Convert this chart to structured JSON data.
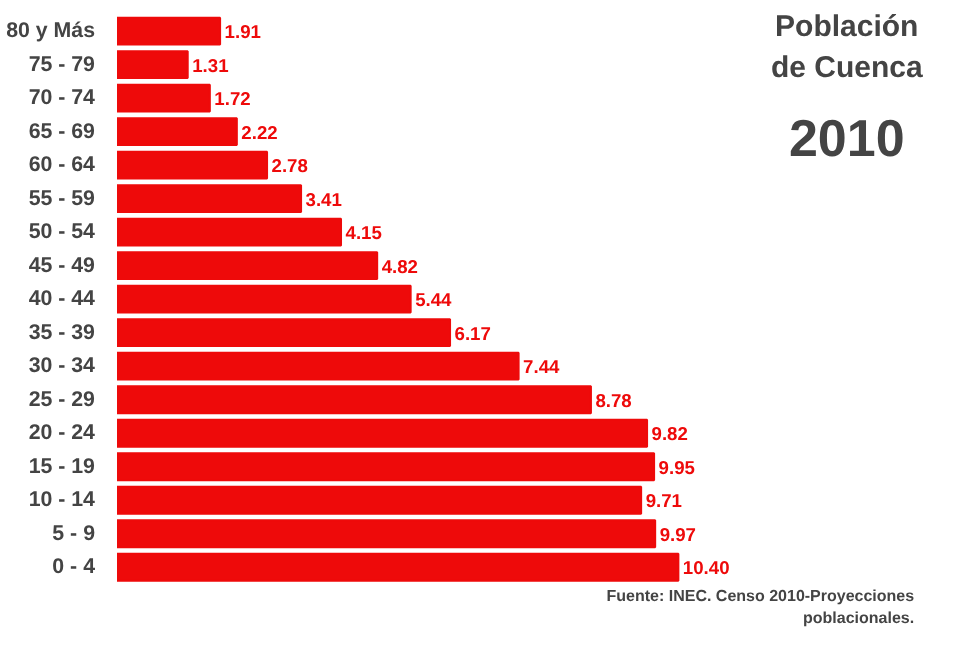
{
  "chart_data": {
    "type": "bar",
    "orientation": "horizontal",
    "title": "Población\nde Cuenca",
    "subtitle": "2010",
    "categories": [
      "80 y Más",
      "75 - 79",
      "70 - 74",
      "65 - 69",
      "60 - 64",
      "55 - 59",
      "50 - 54",
      "45 - 49",
      "40 - 44",
      "35 - 39",
      "30 - 34",
      "25 - 29",
      "20 - 24",
      "15 - 19",
      "10 - 14",
      "5 - 9",
      "0 - 4"
    ],
    "values": [
      1.91,
      1.31,
      1.72,
      2.22,
      2.78,
      3.41,
      4.15,
      4.82,
      5.44,
      6.17,
      7.44,
      8.78,
      9.82,
      9.95,
      9.71,
      9.97,
      10.4
    ],
    "value_labels": [
      "1.91",
      "1.31",
      "1.72",
      "2.22",
      "2.78",
      "3.41",
      "4.15",
      "4.82",
      "5.44",
      "6.17",
      "7.44",
      "8.78",
      "9.82",
      "9.95",
      "9.71",
      "9.97",
      "10.40"
    ],
    "color": "#ee0a0a",
    "annotations": [
      "Fuente: INEC. Censo 2010-Proyecciones\npoblacionales."
    ]
  }
}
